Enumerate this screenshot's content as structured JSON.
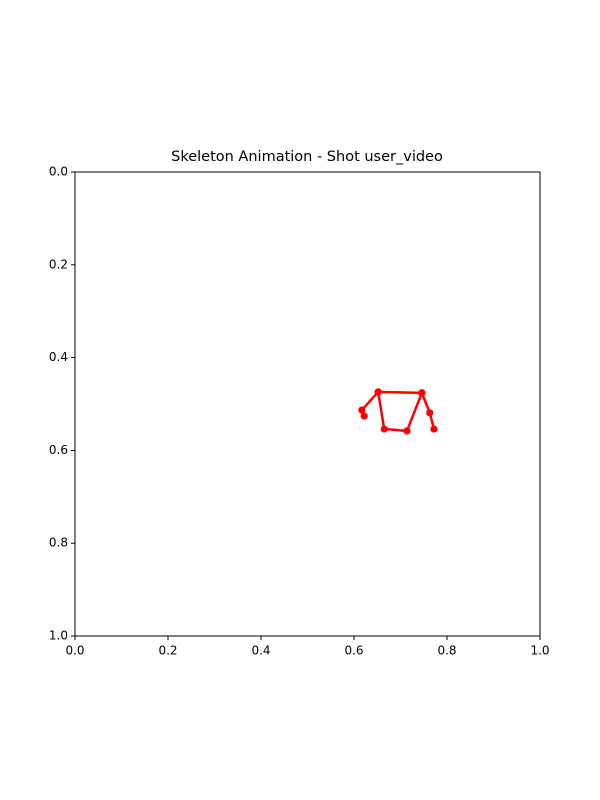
{
  "chart_data": {
    "type": "line",
    "title": "Skeleton Animation - Shot user_video",
    "series": [
      {
        "color": "#ff0000",
        "x": [
          0.622,
          0.617,
          0.652,
          0.665,
          0.714,
          0.746,
          0.652,
          null,
          0.746,
          0.763,
          0.772
        ],
        "y": [
          0.526,
          0.513,
          0.474,
          0.554,
          0.558,
          0.476,
          0.474,
          null,
          0.476,
          0.519,
          0.554
        ]
      }
    ],
    "marker": true,
    "xlim": [
      0,
      1
    ],
    "ylim": [
      0,
      1
    ],
    "y_inverted": true,
    "xticks": [
      {
        "value": 0,
        "label": "0.0"
      },
      {
        "value": 0.2,
        "label": "0.2"
      },
      {
        "value": 0.4,
        "label": "0.4"
      },
      {
        "value": 0.6,
        "label": "0.6"
      },
      {
        "value": 0.8,
        "label": "0.8"
      },
      {
        "value": 1,
        "label": "1.0"
      }
    ],
    "yticks": [
      {
        "value": 0,
        "label": "0.0"
      },
      {
        "value": 0.2,
        "label": "0.2"
      },
      {
        "value": 0.4,
        "label": "0.4"
      },
      {
        "value": 0.6,
        "label": "0.6"
      },
      {
        "value": 0.8,
        "label": "0.8"
      },
      {
        "value": 1,
        "label": "1.0"
      }
    ],
    "grid": false
  }
}
